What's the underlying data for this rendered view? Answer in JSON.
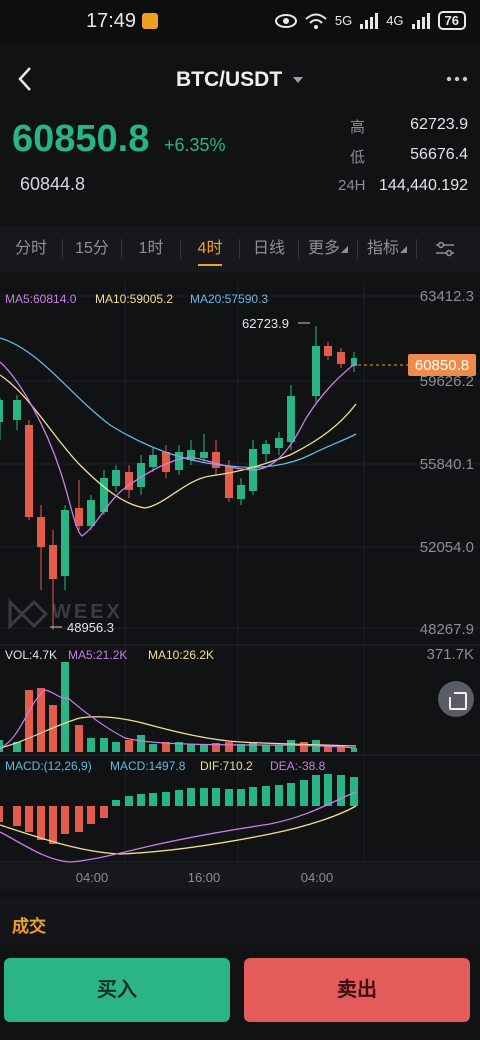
{
  "status_bar": {
    "time": "17:49",
    "battery": "76",
    "network": "5G",
    "network2": "4G"
  },
  "header": {
    "pair": "BTC/USDT"
  },
  "ticker": {
    "last_price": "60850.8",
    "change_pct": "+6.35%",
    "mark_price": "60844.8",
    "high_label": "高",
    "high_value": "62723.9",
    "low_label": "低",
    "low_value": "56676.4",
    "vol_label": "24H",
    "vol_value": "144,440.192"
  },
  "tabs": [
    {
      "label": "分时"
    },
    {
      "label": "15分"
    },
    {
      "label": "1时"
    },
    {
      "label": "4时",
      "active": true
    },
    {
      "label": "日线"
    },
    {
      "label": "更多"
    },
    {
      "label": "指标"
    }
  ],
  "chart_labels": {
    "ma5": "MA5:60814.0",
    "ma10": "MA10:59005.2",
    "ma20": "MA20:57590.3",
    "y_ticks": [
      "63412.3",
      "59626.2",
      "55840.1",
      "52054.0",
      "48267.9"
    ],
    "high_marker": "62723.9",
    "low_marker": "48956.3",
    "current_price_tag": "60850.8",
    "vol": "VOL:4.7K",
    "vol_ma5": "MA5:21.2K",
    "vol_ma10": "MA10:26.2K",
    "vol_max": "371.7K",
    "macd_params": "MACD:(12,26,9)",
    "macd": "MACD:1497.8",
    "dif": "DIF:710.2",
    "dea": "DEA:-38.8",
    "x_ticks": [
      "04:00",
      "16:00",
      "04:00"
    ],
    "watermark": "WEEX"
  },
  "colors": {
    "up": "#29b486",
    "down": "#e35b4a",
    "accent": "#f0a02a",
    "ma5": "#c77fe6",
    "ma10": "#f3df8f",
    "ma20": "#65b8e0"
  },
  "bottom": {
    "deal_label": "成交",
    "buy_label": "买入",
    "sell_label": "卖出"
  }
}
